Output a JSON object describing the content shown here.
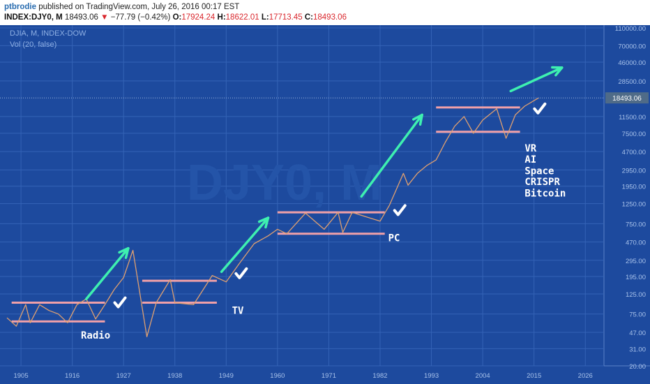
{
  "header": {
    "author": "ptbrodie",
    "published_text": "published on TradingView.com, July 26, 2016 00:17 EST",
    "symbol": "INDEX:DJY0, M",
    "last_price": "18493.06",
    "change_arrow": "▼",
    "change": "−77.79 (−0.42%)",
    "open_label": "O:",
    "open": "17924.24",
    "high_label": "H:",
    "high": "18622.01",
    "low_label": "L:",
    "low": "17713.45",
    "close_label": "C:",
    "close": "18493.06"
  },
  "chart_labels": {
    "series_title": "DJIA, M, INDEX-DOW",
    "volume_title": "Vol (20, false)",
    "watermark": "DJY0, M"
  },
  "colors": {
    "plot_bg": "#1d4a9e",
    "grid": "#3463b6",
    "axis_bg": "#1d4a9e",
    "axis_text": "#a8c2ea",
    "price_line": "#e0a070",
    "range_line": "#f0a0a8",
    "arrow": "#3ef0b0",
    "check": "#ffffff",
    "label": "#ffffff",
    "price_badge_bg": "#4f6b88",
    "current_price_dash": "#9ab4dc"
  },
  "chart_data": {
    "type": "line",
    "title": "DJIA, M, INDEX-DOW",
    "y_scale": "log",
    "ylim": [
      20,
      110000
    ],
    "xlim": [
      1902,
      2030
    ],
    "x_tick_labels": [
      "1905",
      "1916",
      "1927",
      "1938",
      "1949",
      "1960",
      "1971",
      "1982",
      "1993",
      "2004",
      "2015",
      "2026"
    ],
    "y_tick_labels": [
      "110000.00",
      "70000.00",
      "46000.00",
      "28500.00",
      "18493.06",
      "11500.00",
      "7500.00",
      "4700.00",
      "2950.00",
      "1950.00",
      "1250.00",
      "750.00",
      "470.00",
      "295.00",
      "195.00",
      "125.00",
      "75.00",
      "47.00",
      "31.00",
      "20.00"
    ],
    "current_price": 18493.06,
    "series": [
      {
        "x": [
          1902,
          1904,
          1906,
          1907,
          1909,
          1911,
          1913,
          1915,
          1917,
          1919,
          1921,
          1923,
          1925,
          1927,
          1929,
          1932,
          1934,
          1937,
          1938,
          1942,
          1946,
          1949,
          1952,
          1955,
          1958,
          1960,
          1962,
          1966,
          1970,
          1973,
          1974,
          1976,
          1980,
          1982,
          1984,
          1987,
          1988,
          1990,
          1992,
          1994,
          1996,
          1998,
          2000,
          2002,
          2004,
          2007,
          2009,
          2011,
          2013,
          2016
        ],
        "values": [
          68,
          55,
          95,
          60,
          95,
          82,
          75,
          60,
          95,
          110,
          66,
          95,
          140,
          190,
          380,
          42,
          100,
          180,
          100,
          95,
          200,
          170,
          280,
          450,
          550,
          650,
          580,
          980,
          650,
          1000,
          600,
          1000,
          860,
          800,
          1200,
          2700,
          2000,
          2700,
          3300,
          3800,
          6000,
          9000,
          11500,
          7500,
          10500,
          14000,
          6600,
          12000,
          15000,
          18493
        ]
      }
    ],
    "annotations": [
      {
        "text": "Radio",
        "kind": "label"
      },
      {
        "text": "TV",
        "kind": "label"
      },
      {
        "text": "PC",
        "kind": "label"
      },
      {
        "text": "VR",
        "kind": "label"
      },
      {
        "text": "AI",
        "kind": "label"
      },
      {
        "text": "Space",
        "kind": "label"
      },
      {
        "text": "CRISPR",
        "kind": "label"
      },
      {
        "text": "Bitcoin",
        "kind": "label"
      }
    ],
    "ranges": [
      {
        "x": [
          1903,
          1923
        ],
        "y_top": 100,
        "y_bottom": 62
      },
      {
        "x": [
          1931,
          1947
        ],
        "y_top": 175,
        "y_bottom": 100
      },
      {
        "x": [
          1960,
          1983
        ],
        "y_top": 1000,
        "y_bottom": 580
      },
      {
        "x": [
          1994,
          2012
        ],
        "y_top": 14500,
        "y_bottom": 7800
      }
    ],
    "trend_arrows": [
      {
        "x": [
          1919,
          1928
        ],
        "y": [
          110,
          400
        ]
      },
      {
        "x": [
          1948,
          1958
        ],
        "y": [
          220,
          870
        ]
      },
      {
        "x": [
          1978,
          1991
        ],
        "y": [
          1500,
          12000
        ]
      },
      {
        "x": [
          2010,
          2021
        ],
        "y": [
          22000,
          40000
        ]
      }
    ],
    "checkmarks": [
      {
        "x": 1926,
        "y": 100
      },
      {
        "x": 1952,
        "y": 210
      },
      {
        "x": 1986,
        "y": 1050
      },
      {
        "x": 2016,
        "y": 14000
      }
    ]
  }
}
